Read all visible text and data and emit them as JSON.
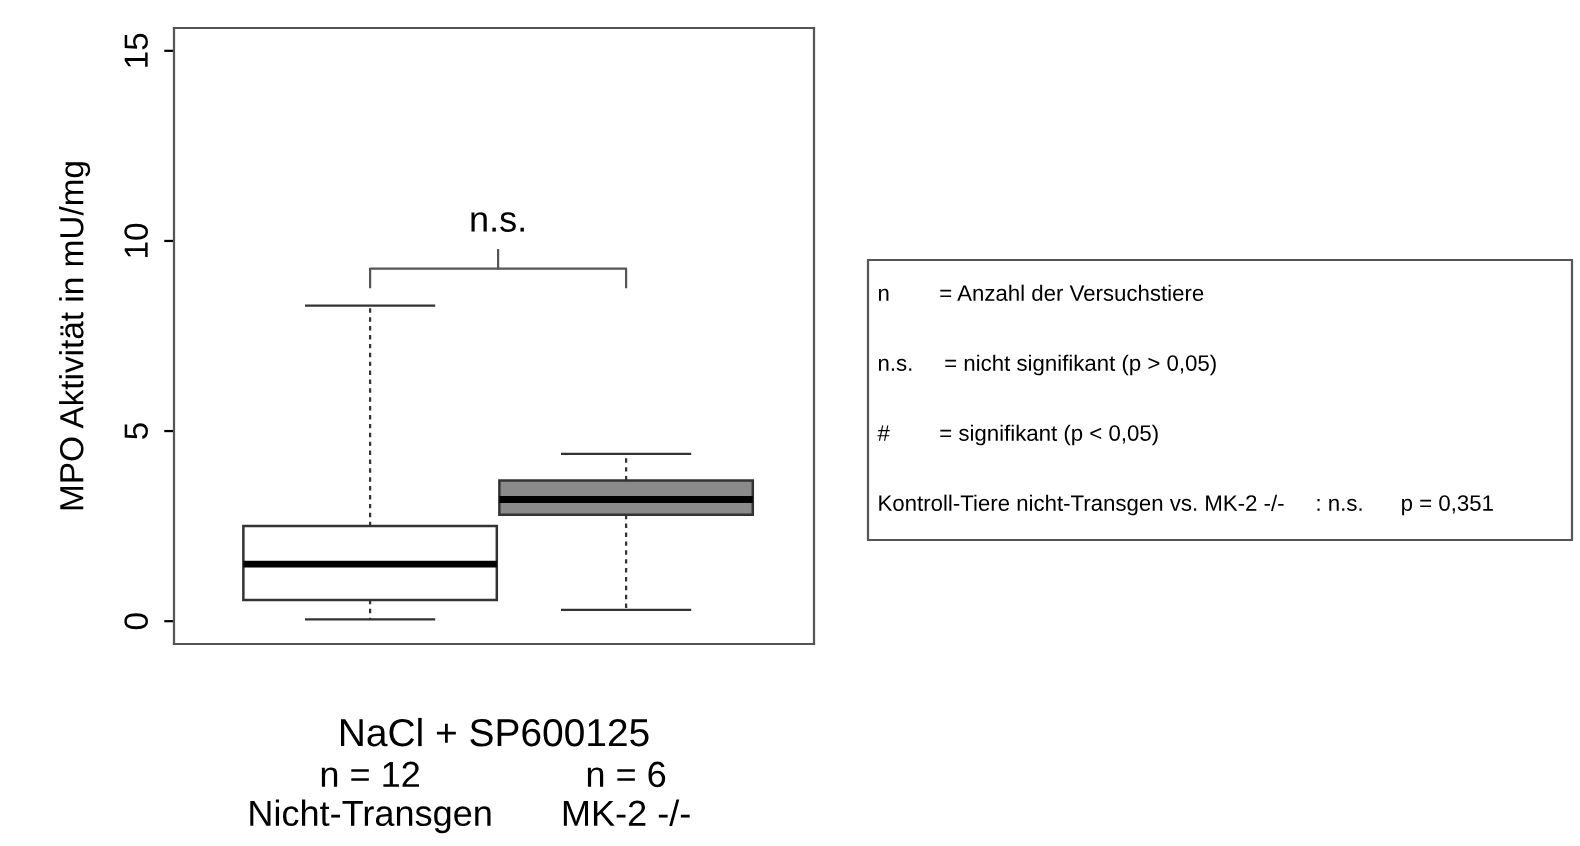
{
  "chart_data": {
    "type": "box",
    "ylabel": "MPO Aktivität in mU/mg",
    "xlabel": "NaCl + SP600125",
    "categories": [
      "n = 12\nNicht-Transgen",
      "n = 6\nMK-2 -/-"
    ],
    "boxes": [
      {
        "low": 0.05,
        "q1": 0.56,
        "median": 1.5,
        "q3": 2.5,
        "high": 8.3
      },
      {
        "low": 0.3,
        "q1": 2.8,
        "median": 3.2,
        "q3": 3.7,
        "high": 4.4
      }
    ],
    "colors": [
      "#ffffff",
      "#8a8a8a"
    ],
    "ylim": [
      -0.6,
      15.6
    ],
    "yticks": [
      0,
      5,
      10,
      15
    ],
    "grid": false,
    "annotations": [
      "n.s.",
      "n        = Anzahl der Versuchstiere",
      "n.s.     = nicht signifikant (p > 0,05)",
      "#        = signifikant (p < 0,05)",
      "Kontroll-Tiere nicht-Transgen vs. MK-2 -/-     : n.s.      p = 0,351"
    ]
  }
}
